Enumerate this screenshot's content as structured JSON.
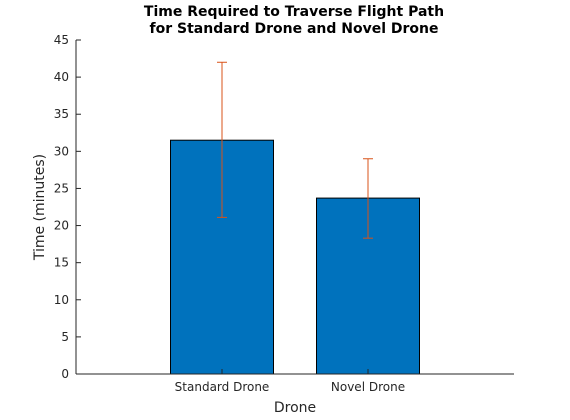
{
  "chart_data": {
    "type": "bar",
    "title": [
      "Time Required to Traverse Flight Path",
      "for Standard Drone and Novel Drone"
    ],
    "xlabel": "Drone",
    "ylabel": "Time (minutes)",
    "categories": [
      "Standard Drone",
      "Novel Drone"
    ],
    "values": [
      31.5,
      23.7
    ],
    "error_low": [
      21.1,
      18.3
    ],
    "error_high": [
      42.0,
      29.0
    ],
    "ylim": [
      0,
      45
    ],
    "yticks": [
      0,
      5,
      10,
      15,
      20,
      25,
      30,
      35,
      40,
      45
    ],
    "xlim": [
      0,
      3
    ],
    "grid": false,
    "legend": "none",
    "colors": {
      "bar": "#0072BD",
      "errorbar": "#D95319",
      "axis": "#262626"
    }
  }
}
